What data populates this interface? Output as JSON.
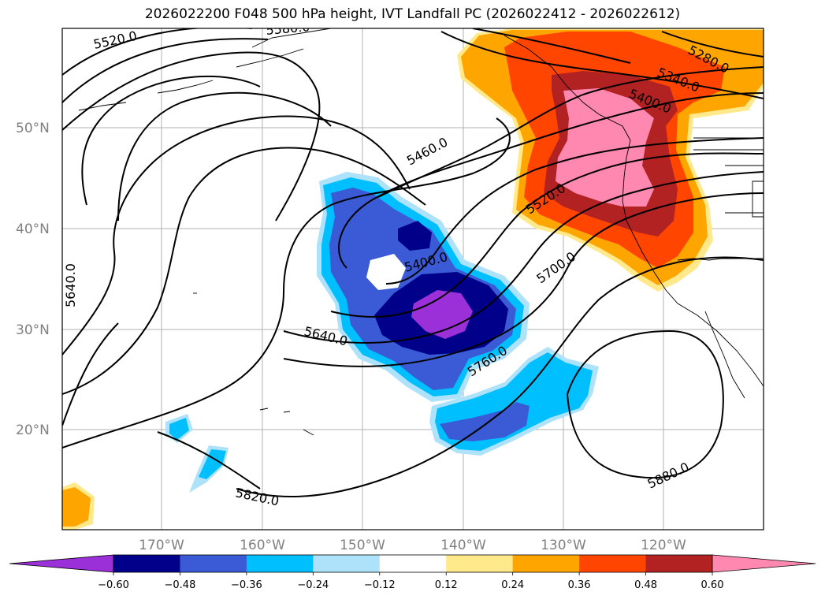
{
  "title": "2026022200 F048 500 hPa height, IVT Landfall PC (2026022412 - 2026022612)",
  "lat_labels": [
    "50°N",
    "40°N",
    "30°N",
    "20°N"
  ],
  "lon_labels": [
    "170°W",
    "160°W",
    "150°W",
    "140°W",
    "130°W",
    "120°W"
  ],
  "contour_labels": [
    "5520.0",
    "5460.0",
    "5400.0",
    "5640.0",
    "5640.0",
    "5520.0",
    "5700.0",
    "5760.0",
    "5820.0",
    "5880.0",
    "5280.0",
    "5340.0",
    "5400.0",
    "5580.0"
  ],
  "colorbar": {
    "ticks": [
      "−0.60",
      "−0.48",
      "−0.36",
      "−0.24",
      "−0.12",
      "0.12",
      "0.24",
      "0.36",
      "0.48",
      "0.60"
    ],
    "colors": [
      "#9b30d9",
      "#00008b",
      "#3b5bd6",
      "#00bfff",
      "#aee2fa",
      "#ffffff",
      "#ffe98a",
      "#ffa500",
      "#ff4500",
      "#b22222",
      "#ff88b0"
    ]
  },
  "icons": [
    "colorbar-extend-min-arrow",
    "colorbar-extend-max-arrow"
  ]
}
